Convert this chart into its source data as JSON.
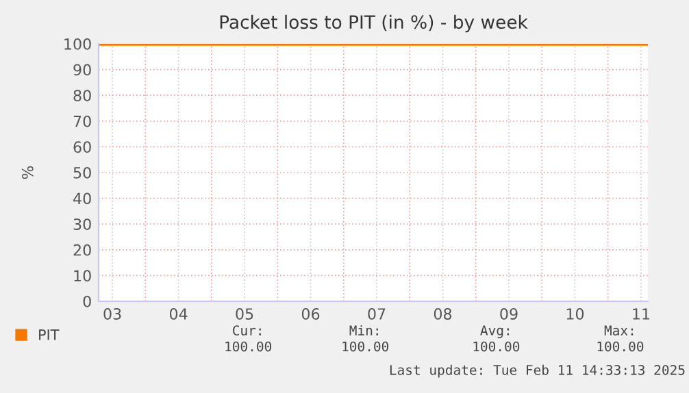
{
  "chart_data": {
    "type": "line",
    "title": "Packet loss to PIT (in %) - by week",
    "ylabel": "%",
    "x": [
      "2025-02-03T07:00",
      "2025-02-11T14:30"
    ],
    "series": [
      {
        "name": "PIT",
        "color": "#f57900",
        "values": [
          100,
          100
        ]
      }
    ],
    "xlim": [
      "2025-02-03T07:00",
      "2025-02-11T14:30"
    ],
    "xticks": [
      {
        "value": "2025-02-03T12:00",
        "label": "03"
      },
      {
        "value": "2025-02-04T12:00",
        "label": "04"
      },
      {
        "value": "2025-02-05T12:00",
        "label": "05"
      },
      {
        "value": "2025-02-06T12:00",
        "label": "06"
      },
      {
        "value": "2025-02-07T12:00",
        "label": "07"
      },
      {
        "value": "2025-02-08T12:00",
        "label": "08"
      },
      {
        "value": "2025-02-09T12:00",
        "label": "09"
      },
      {
        "value": "2025-02-10T12:00",
        "label": "10"
      },
      {
        "value": "2025-02-11T12:00",
        "label": "11"
      },
      {
        "value": "2025-02-04T00:00",
        "label": null
      },
      {
        "value": "2025-02-05T00:00",
        "label": null
      },
      {
        "value": "2025-02-06T00:00",
        "label": null
      },
      {
        "value": "2025-02-07T00:00",
        "label": null
      },
      {
        "value": "2025-02-08T00:00",
        "label": null
      },
      {
        "value": "2025-02-09T00:00",
        "label": null
      },
      {
        "value": "2025-02-10T00:00",
        "label": null
      },
      {
        "value": "2025-02-11T00:00",
        "label": null
      }
    ],
    "ylim": [
      0,
      100
    ],
    "yticks": [
      0,
      10,
      20,
      30,
      40,
      50,
      60,
      70,
      80,
      90,
      100
    ],
    "grid": true,
    "legend": "bottom left",
    "line_style": "solid",
    "marker": "none",
    "annotations": [
      "Cur:\n100.00",
      "Min:\n100.00",
      "Avg:\n100.00",
      "Max:\n100.00",
      "Last update: Tue Feb 11 14:33:13 2025"
    ]
  }
}
